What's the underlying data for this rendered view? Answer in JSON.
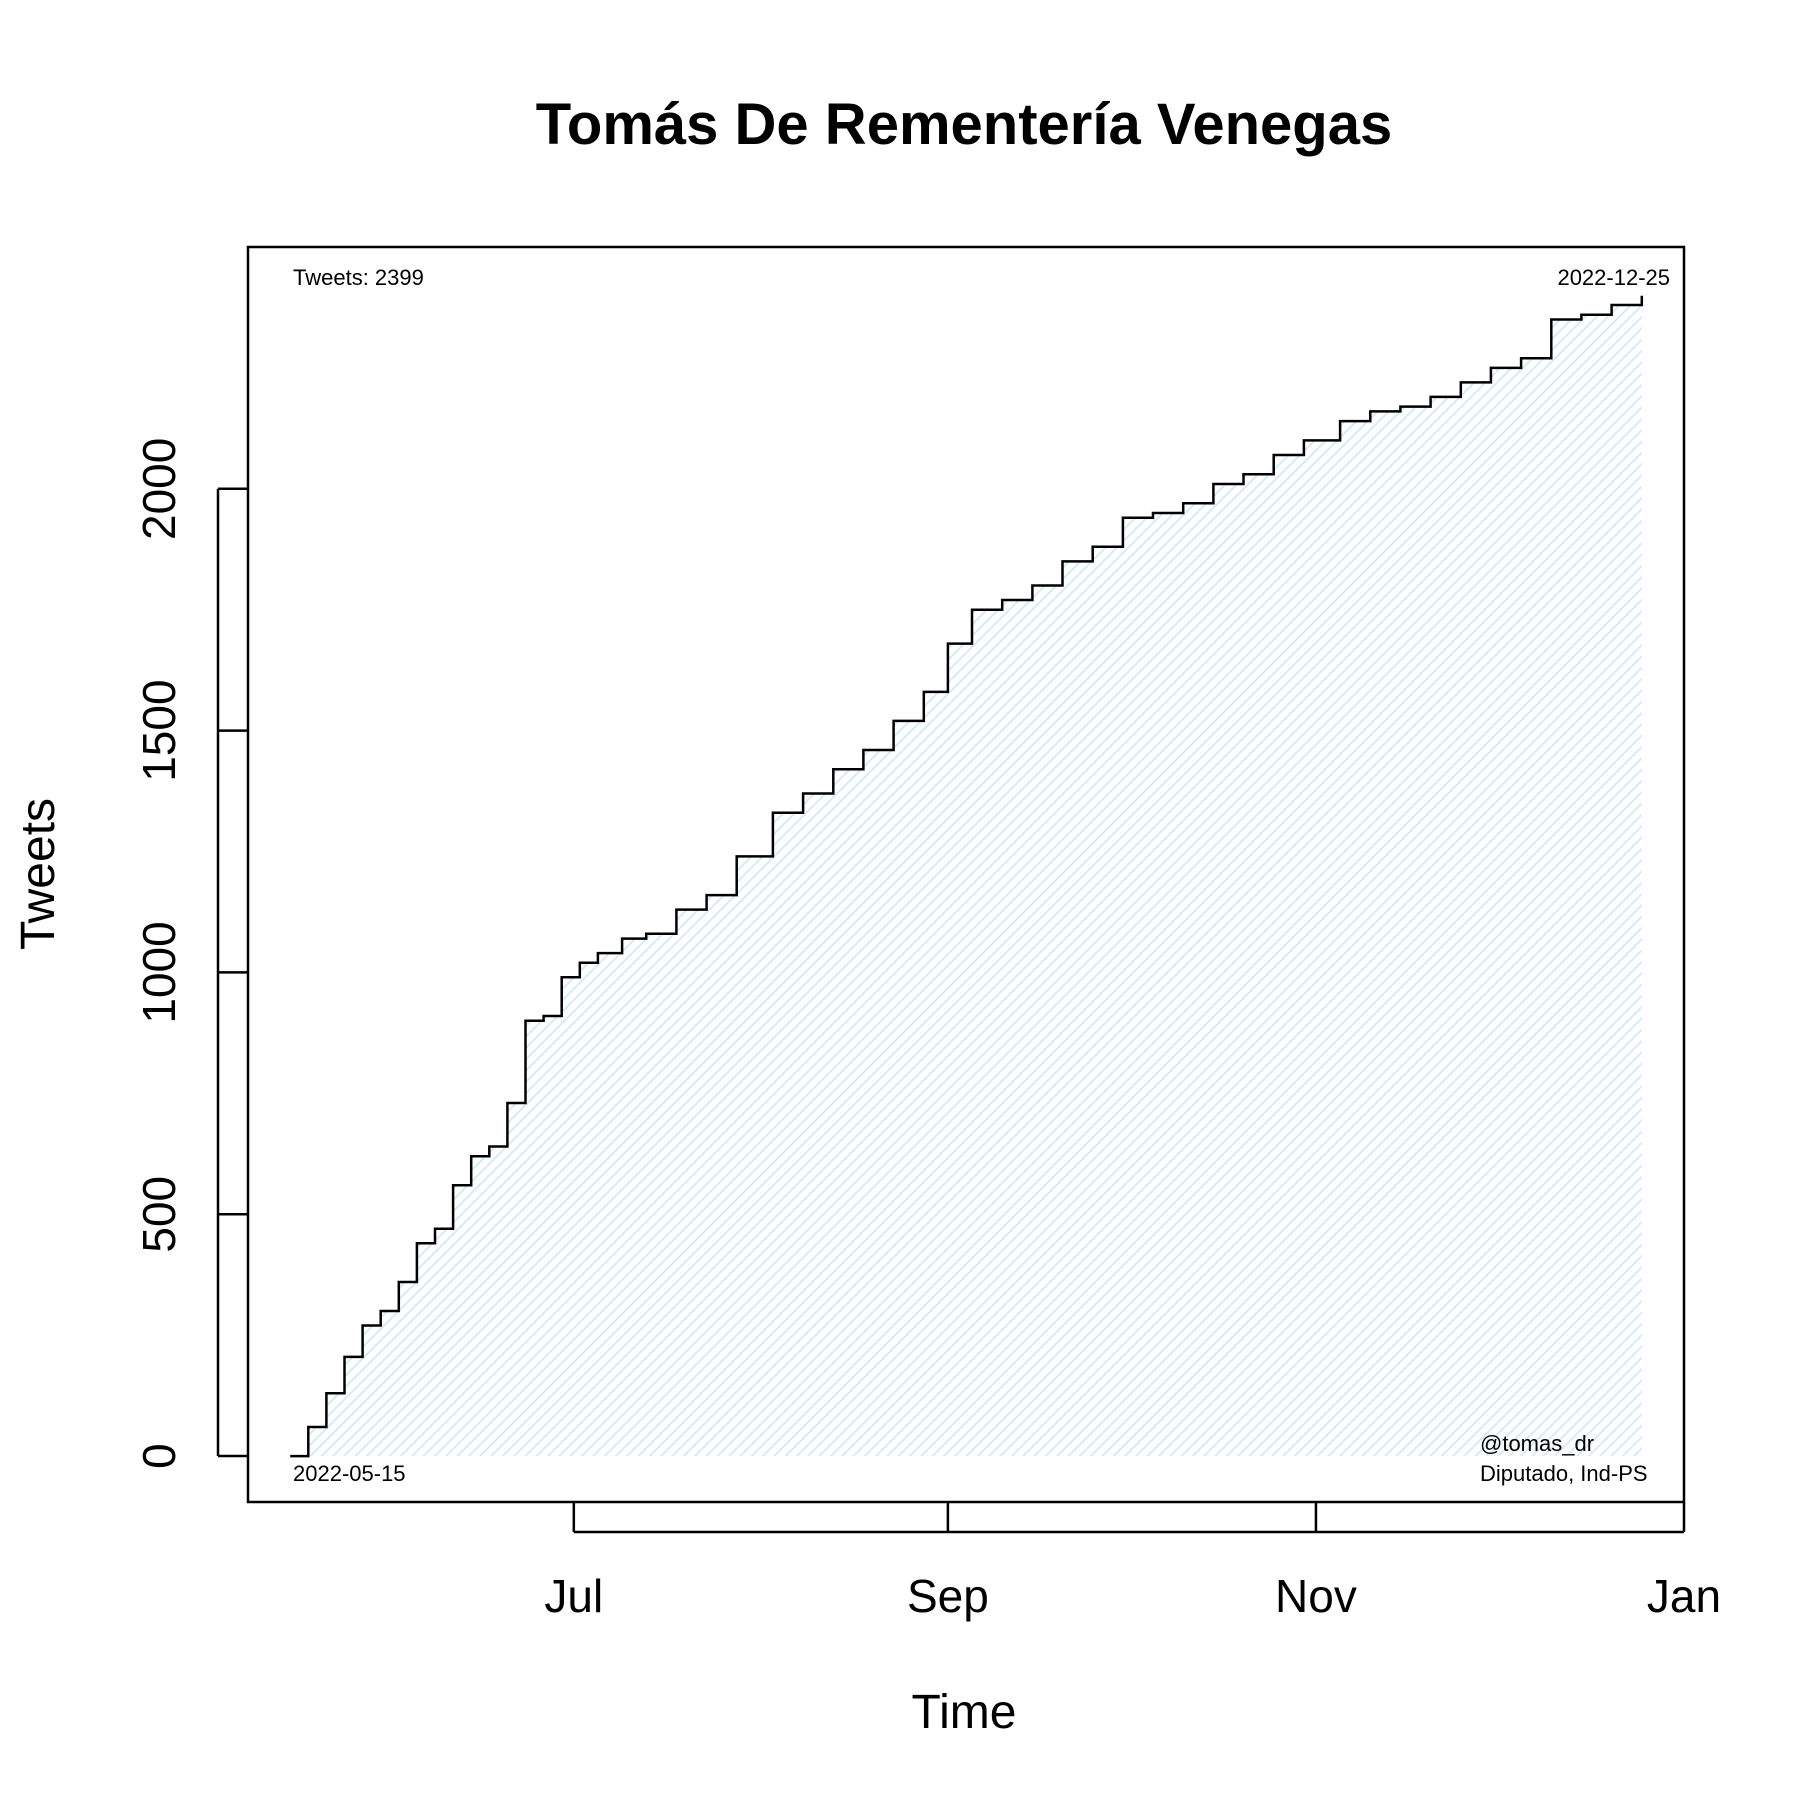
{
  "chart_data": {
    "type": "line",
    "title": "Tomás De Rementería Venegas",
    "xlabel": "Time",
    "ylabel": "Tweets",
    "xlim": [
      "2022-05-08",
      "2023-01-01"
    ],
    "ylim": [
      -95,
      2500
    ],
    "grid": false,
    "step": true,
    "fill_color": "#dff0f5",
    "line_color": "#000000",
    "x_ticks": [
      {
        "date": "2022-07-01",
        "label": "Jul"
      },
      {
        "date": "2022-09-01",
        "label": "Sep"
      },
      {
        "date": "2022-11-01",
        "label": "Nov"
      },
      {
        "date": "2023-01-01",
        "label": "Jan"
      }
    ],
    "y_ticks": [
      0,
      500,
      1000,
      1500,
      2000
    ],
    "annotations": {
      "top_left": "Tweets: 2399",
      "top_right": "2022-12-25",
      "bottom_left": "2022-05-15",
      "bottom_right_line1": "@tomas_dr",
      "bottom_right_line2": "Diputado, Ind-PS"
    },
    "series": [
      {
        "x": [
          "2022-05-15",
          "2022-05-18",
          "2022-05-21",
          "2022-05-24",
          "2022-05-27",
          "2022-05-30",
          "2022-06-02",
          "2022-06-05",
          "2022-06-08",
          "2022-06-11",
          "2022-06-14",
          "2022-06-17",
          "2022-06-20",
          "2022-06-23",
          "2022-06-26",
          "2022-06-29",
          "2022-07-02",
          "2022-07-05",
          "2022-07-09",
          "2022-07-13",
          "2022-07-18",
          "2022-07-23",
          "2022-07-28",
          "2022-08-03",
          "2022-08-08",
          "2022-08-13",
          "2022-08-18",
          "2022-08-23",
          "2022-08-28",
          "2022-09-01",
          "2022-09-05",
          "2022-09-10",
          "2022-09-15",
          "2022-09-20",
          "2022-09-25",
          "2022-09-30",
          "2022-10-05",
          "2022-10-10",
          "2022-10-15",
          "2022-10-20",
          "2022-10-25",
          "2022-10-30",
          "2022-11-05",
          "2022-11-10",
          "2022-11-15",
          "2022-11-20",
          "2022-11-25",
          "2022-11-30",
          "2022-12-05",
          "2022-12-10",
          "2022-12-15",
          "2022-12-20",
          "2022-12-25"
        ],
        "y": [
          0,
          60,
          130,
          205,
          270,
          300,
          360,
          440,
          470,
          560,
          620,
          640,
          730,
          900,
          910,
          990,
          1020,
          1040,
          1070,
          1080,
          1130,
          1160,
          1240,
          1330,
          1370,
          1420,
          1460,
          1520,
          1580,
          1680,
          1750,
          1770,
          1800,
          1850,
          1880,
          1940,
          1950,
          1970,
          2010,
          2030,
          2070,
          2100,
          2140,
          2160,
          2170,
          2190,
          2220,
          2250,
          2270,
          2350,
          2360,
          2380,
          2399
        ]
      }
    ]
  }
}
